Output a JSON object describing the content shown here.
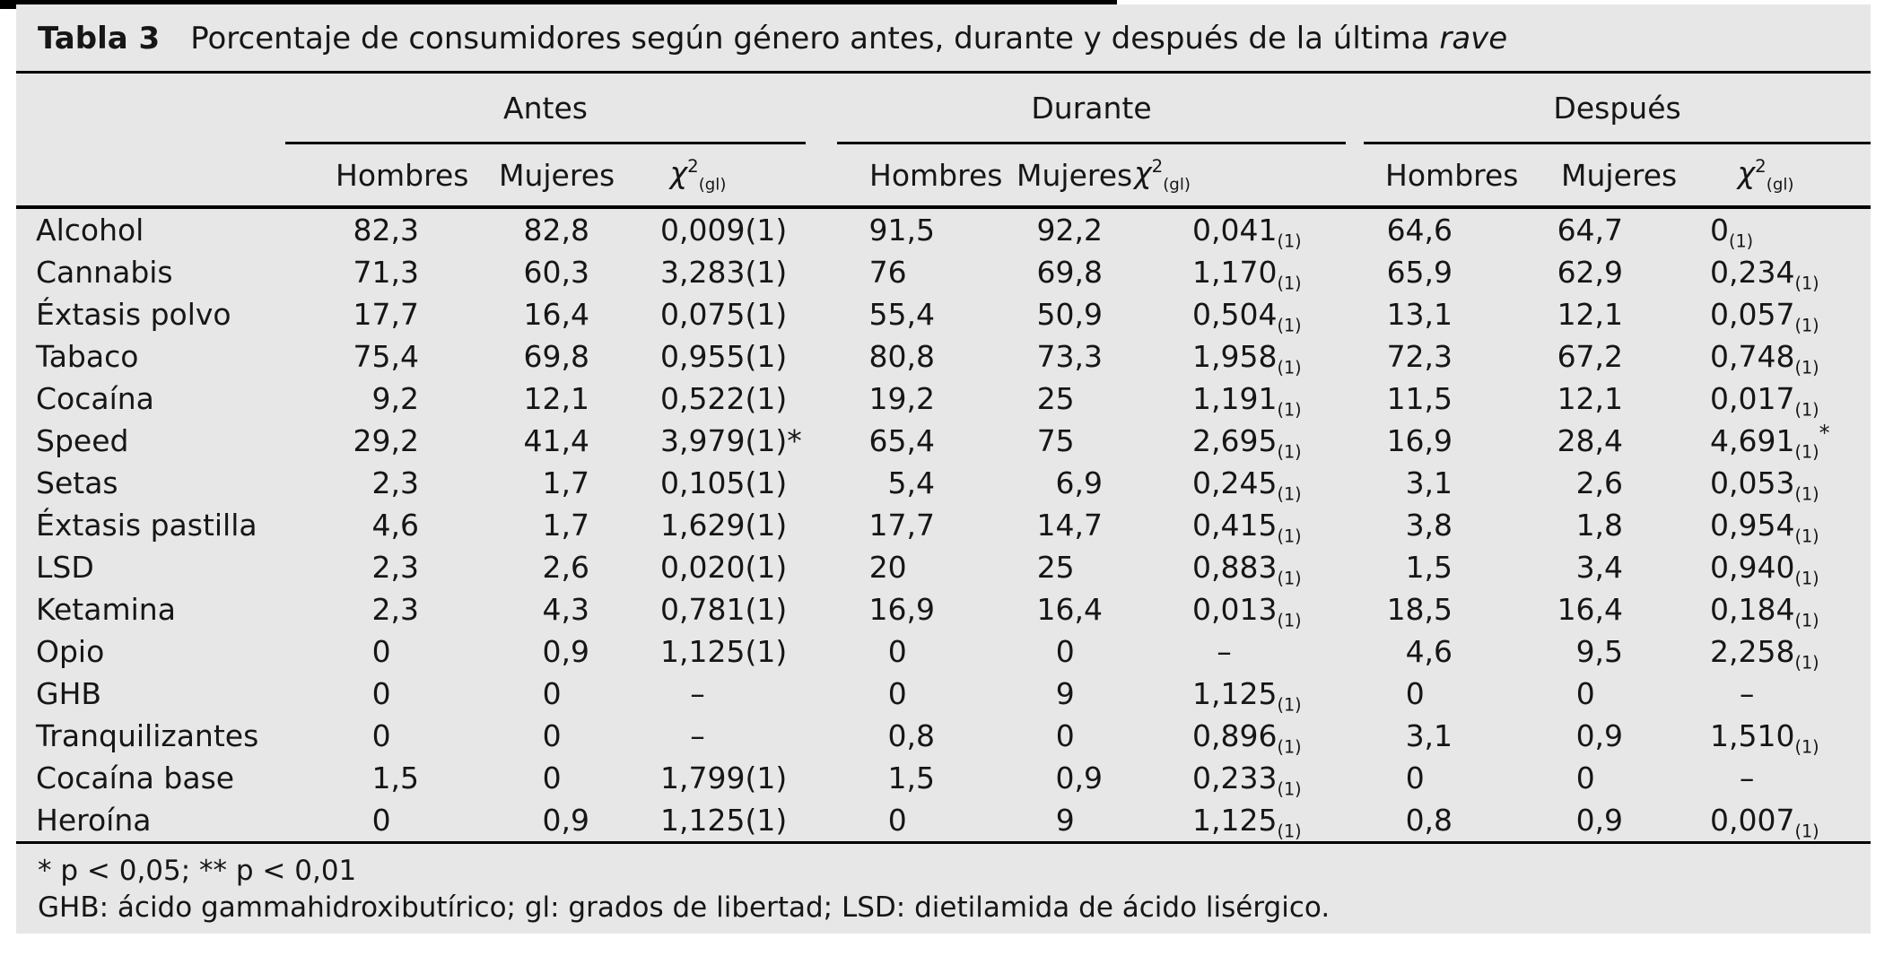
{
  "table": {
    "label": "Tabla 3",
    "title": "Porcentaje de consumidores según género antes, durante y después de la última",
    "title_italic": "rave",
    "groups": [
      {
        "label": "Antes"
      },
      {
        "label": "Durante"
      },
      {
        "label": "Después"
      }
    ],
    "subheaders": {
      "hombres": "Hombres",
      "mujeres": "Mujeres",
      "chi_base": "χ",
      "chi_sup": "2",
      "chi_sub": "(gl)"
    },
    "rows": [
      {
        "name": "Alcohol",
        "a_h": "82,3",
        "a_m": "82,8",
        "a_chi": "0,009(1)",
        "d_h": "91,5",
        "d_m": "92,2",
        "d_chi": "0,041",
        "d_chi_sub": "(1)",
        "p_h": "64,6",
        "p_m": "64,7",
        "p_chi": "0",
        "p_chi_sub": "(1)"
      },
      {
        "name": "Cannabis",
        "a_h": "71,3",
        "a_m": "60,3",
        "a_chi": "3,283(1)",
        "d_h": "76",
        "d_m": "69,8",
        "d_chi": "1,170",
        "d_chi_sub": "(1)",
        "p_h": "65,9",
        "p_m": "62,9",
        "p_chi": "0,234",
        "p_chi_sub": "(1)"
      },
      {
        "name": "Éxtasis polvo",
        "a_h": "17,7",
        "a_m": "16,4",
        "a_chi": "0,075(1)",
        "d_h": "55,4",
        "d_m": "50,9",
        "d_chi": "0,504",
        "d_chi_sub": "(1)",
        "p_h": "13,1",
        "p_m": "12,1",
        "p_chi": "0,057",
        "p_chi_sub": "(1)"
      },
      {
        "name": "Tabaco",
        "a_h": "75,4",
        "a_m": "69,8",
        "a_chi": "0,955(1)",
        "d_h": "80,8",
        "d_m": "73,3",
        "d_chi": "1,958",
        "d_chi_sub": "(1)",
        "p_h": "72,3",
        "p_m": "67,2",
        "p_chi": "0,748",
        "p_chi_sub": "(1)"
      },
      {
        "name": "Cocaína",
        "a_h": "9,2",
        "a_m": "12,1",
        "a_chi": "0,522(1)",
        "d_h": "19,2",
        "d_m": "25",
        "d_chi": "1,191",
        "d_chi_sub": "(1)",
        "p_h": "11,5",
        "p_m": "12,1",
        "p_chi": "0,017",
        "p_chi_sub": "(1)"
      },
      {
        "name": "Speed",
        "a_h": "29,2",
        "a_m": "41,4",
        "a_chi": "3,979(1)*",
        "d_h": "65,4",
        "d_m": "75",
        "d_chi": "2,695",
        "d_chi_sub": "(1)",
        "p_h": "16,9",
        "p_m": "28,4",
        "p_chi": "4,691",
        "p_chi_sub": "(1)",
        "p_star": "*"
      },
      {
        "name": "Setas",
        "a_h": "2,3",
        "a_m": "1,7",
        "a_chi": "0,105(1)",
        "d_h": "5,4",
        "d_m": "6,9",
        "d_chi": "0,245",
        "d_chi_sub": "(1)",
        "p_h": "3,1",
        "p_m": "2,6",
        "p_chi": "0,053",
        "p_chi_sub": "(1)"
      },
      {
        "name": "Éxtasis pastilla",
        "a_h": "4,6",
        "a_m": "1,7",
        "a_chi": "1,629(1)",
        "d_h": "17,7",
        "d_m": "14,7",
        "d_chi": "0,415",
        "d_chi_sub": "(1)",
        "p_h": "3,8",
        "p_m": "1,8",
        "p_chi": "0,954",
        "p_chi_sub": "(1)"
      },
      {
        "name": "LSD",
        "a_h": "2,3",
        "a_m": "2,6",
        "a_chi": "0,020(1)",
        "d_h": "20",
        "d_m": "25",
        "d_chi": "0,883",
        "d_chi_sub": "(1)",
        "p_h": "1,5",
        "p_m": "3,4",
        "p_chi": "0,940",
        "p_chi_sub": "(1)"
      },
      {
        "name": "Ketamina",
        "a_h": "2,3",
        "a_m": "4,3",
        "a_chi": "0,781(1)",
        "d_h": "16,9",
        "d_m": "16,4",
        "d_chi": "0,013",
        "d_chi_sub": "(1)",
        "p_h": "18,5",
        "p_m": "16,4",
        "p_chi": "0,184",
        "p_chi_sub": "(1)"
      },
      {
        "name": "Opio",
        "a_h": "0",
        "a_m": "0,9",
        "a_chi": "1,125(1)",
        "d_h": "0",
        "d_m": "0",
        "d_chi": "–",
        "p_h": "4,6",
        "p_m": "9,5",
        "p_chi": "2,258",
        "p_chi_sub": "(1)"
      },
      {
        "name": "GHB",
        "a_h": "0",
        "a_m": "0",
        "a_chi": "–",
        "d_h": "0",
        "d_m": "9",
        "d_chi": "1,125",
        "d_chi_sub": "(1)",
        "p_h": "0",
        "p_m": "0",
        "p_chi": "–"
      },
      {
        "name": "Tranquilizantes",
        "a_h": "0",
        "a_m": "0",
        "a_chi": "–",
        "d_h": "0,8",
        "d_m": "0",
        "d_chi": "0,896",
        "d_chi_sub": "(1)",
        "p_h": "3,1",
        "p_m": "0,9",
        "p_chi": "1,510",
        "p_chi_sub": "(1)"
      },
      {
        "name": "Cocaína base",
        "a_h": "1,5",
        "a_m": "0",
        "a_chi": "1,799(1)",
        "d_h": "1,5",
        "d_m": "0,9",
        "d_chi": "0,233",
        "d_chi_sub": "(1)",
        "p_h": "0",
        "p_m": "0",
        "p_chi": "–"
      },
      {
        "name": "Heroína",
        "a_h": "0",
        "a_m": "0,9",
        "a_chi": "1,125(1)",
        "d_h": "0",
        "d_m": "9",
        "d_chi": "1,125",
        "d_chi_sub": "(1)",
        "p_h": "0,8",
        "p_m": "0,9",
        "p_chi": "0,007",
        "p_chi_sub": "(1)"
      }
    ],
    "footnotes": [
      "* p < 0,05; ** p < 0,01",
      "GHB: ácido gammahidroxibutírico; gl: grados de libertad; LSD: dietilamida de ácido lisérgico."
    ]
  }
}
